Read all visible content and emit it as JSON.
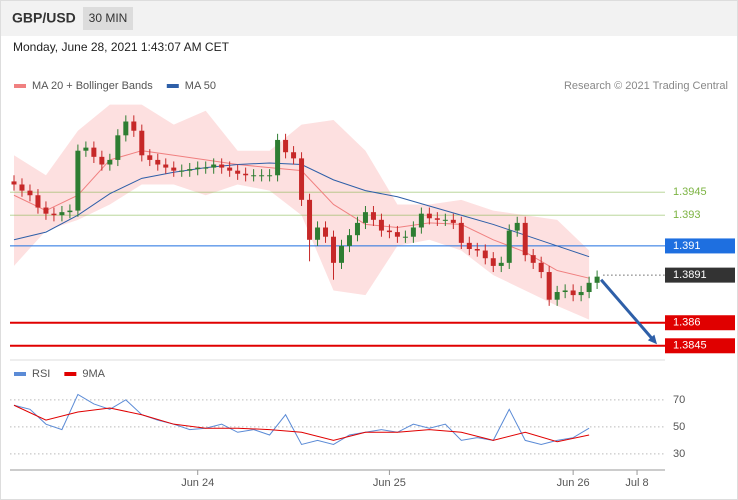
{
  "chart_data": {
    "type": "candlestick",
    "symbol": "GBP/USD",
    "timeframe": "30 MIN",
    "timestamp": "Monday, June 28, 2021 1:43:07 AM CET",
    "credit": "Research © 2021 Trading Central",
    "legend": [
      {
        "name": "MA 20 + Bollinger Bands",
        "color": "#f08080"
      },
      {
        "name": "MA 50",
        "color": "#2e5fa8"
      }
    ],
    "xlim": [
      -0.5,
      81.5
    ],
    "x_labels": [
      {
        "value": 23,
        "label": "Jun 24"
      },
      {
        "value": 47,
        "label": "Jun 25"
      },
      {
        "value": 70,
        "label": "Jun 26"
      },
      {
        "value": 78,
        "label": "Jul 8"
      }
    ],
    "ylim": [
      1.3839,
      1.4005
    ],
    "up_color": "#2e7d32",
    "down_color": "#c62828",
    "open": [
      1.3952,
      1.395,
      1.3946,
      1.3943,
      1.3935,
      1.3931,
      1.393,
      1.3932,
      1.3933,
      1.3972,
      1.3974,
      1.3968,
      1.3963,
      1.3966,
      1.3982,
      1.3991,
      1.3985,
      1.3969,
      1.3966,
      1.3963,
      1.3961,
      1.3959,
      1.3959,
      1.396,
      1.3961,
      1.3961,
      1.3963,
      1.3961,
      1.3959,
      1.3957,
      1.3956,
      1.3956,
      1.3956,
      1.3956,
      1.3979,
      1.3971,
      1.3967,
      1.394,
      1.3914,
      1.3922,
      1.3916,
      1.3899,
      1.391,
      1.3917,
      1.3925,
      1.3932,
      1.3927,
      1.392,
      1.3919,
      1.3916,
      1.3916,
      1.3922,
      1.3931,
      1.3928,
      1.3927,
      1.3927,
      1.3925,
      1.3912,
      1.3908,
      1.3907,
      1.3902,
      1.3897,
      1.3899,
      1.392,
      1.3925,
      1.3904,
      1.3899,
      1.3893,
      1.3875,
      1.388,
      1.3881,
      1.3878,
      1.388,
      1.3886
    ],
    "high": [
      1.3956,
      1.3954,
      1.395,
      1.3947,
      1.3939,
      1.3935,
      1.3936,
      1.3937,
      1.3976,
      1.3978,
      1.3978,
      1.3972,
      1.397,
      1.3986,
      1.3995,
      1.3995,
      1.3989,
      1.3973,
      1.397,
      1.3967,
      1.3965,
      1.3963,
      1.3964,
      1.3965,
      1.3965,
      1.3967,
      1.3967,
      1.3965,
      1.3963,
      1.3961,
      1.396,
      1.396,
      1.396,
      1.3983,
      1.3983,
      1.3975,
      1.3971,
      1.3944,
      1.3926,
      1.3926,
      1.392,
      1.3914,
      1.3921,
      1.3929,
      1.3936,
      1.3936,
      1.3931,
      1.3924,
      1.3923,
      1.392,
      1.3926,
      1.3935,
      1.3935,
      1.3932,
      1.3931,
      1.3931,
      1.3929,
      1.3916,
      1.3912,
      1.3911,
      1.3906,
      1.3903,
      1.3924,
      1.3929,
      1.3929,
      1.3908,
      1.3903,
      1.3897,
      1.3884,
      1.3885,
      1.3885,
      1.3884,
      1.389,
      1.3894
    ],
    "low": [
      1.3946,
      1.3942,
      1.3939,
      1.3931,
      1.3927,
      1.3926,
      1.3926,
      1.3928,
      1.3929,
      1.3968,
      1.3964,
      1.3959,
      1.3959,
      1.3962,
      1.3978,
      1.3981,
      1.3965,
      1.3962,
      1.3959,
      1.3957,
      1.3955,
      1.3955,
      1.3955,
      1.3956,
      1.3957,
      1.3957,
      1.3957,
      1.3955,
      1.3953,
      1.3952,
      1.3952,
      1.3952,
      1.3952,
      1.3952,
      1.3967,
      1.3963,
      1.3936,
      1.39,
      1.391,
      1.3912,
      1.3888,
      1.3895,
      1.3906,
      1.3913,
      1.3921,
      1.3923,
      1.3916,
      1.3915,
      1.3912,
      1.3912,
      1.3912,
      1.3918,
      1.3924,
      1.3923,
      1.3923,
      1.3921,
      1.3908,
      1.3904,
      1.3903,
      1.3898,
      1.3893,
      1.3893,
      1.3895,
      1.3916,
      1.39,
      1.3895,
      1.3889,
      1.3871,
      1.3871,
      1.3876,
      1.3874,
      1.3874,
      1.3876,
      1.3882
    ],
    "close": [
      1.395,
      1.3946,
      1.3943,
      1.3935,
      1.3931,
      1.393,
      1.3932,
      1.3933,
      1.3972,
      1.3974,
      1.3968,
      1.3963,
      1.3966,
      1.3982,
      1.3991,
      1.3985,
      1.3969,
      1.3966,
      1.3963,
      1.3961,
      1.3959,
      1.3959,
      1.396,
      1.3961,
      1.3961,
      1.3963,
      1.3961,
      1.3959,
      1.3957,
      1.3956,
      1.3956,
      1.3956,
      1.3956,
      1.3979,
      1.3971,
      1.3967,
      1.394,
      1.3914,
      1.3922,
      1.3916,
      1.3899,
      1.391,
      1.3917,
      1.3925,
      1.3932,
      1.3927,
      1.392,
      1.3919,
      1.3916,
      1.3916,
      1.3922,
      1.3931,
      1.3928,
      1.3927,
      1.3927,
      1.3925,
      1.3912,
      1.3908,
      1.3907,
      1.3902,
      1.3897,
      1.3899,
      1.392,
      1.3925,
      1.3904,
      1.3899,
      1.3893,
      1.3875,
      1.388,
      1.3881,
      1.3878,
      1.388,
      1.3886,
      1.389
    ],
    "ma_x": [
      0,
      4,
      8,
      12,
      16,
      20,
      24,
      28,
      32,
      36,
      40,
      44,
      48,
      52,
      56,
      60,
      64,
      68,
      72
    ],
    "ma20": [
      1.3943,
      1.3933,
      1.3943,
      1.3966,
      1.3972,
      1.3969,
      1.3966,
      1.3963,
      1.3961,
      1.3959,
      1.3937,
      1.3924,
      1.3922,
      1.3925,
      1.3924,
      1.3914,
      1.3906,
      1.3894,
      1.3889
    ],
    "bollinger_upper": [
      1.3969,
      1.3956,
      1.3985,
      1.4002,
      1.4002,
      1.3989,
      1.3998,
      1.3972,
      1.3972,
      1.3989,
      1.3992,
      1.3972,
      1.3937,
      1.3937,
      1.394,
      1.3933,
      1.393,
      1.3927,
      1.3907
    ],
    "bollinger_lower": [
      1.3897,
      1.392,
      1.3927,
      1.3937,
      1.395,
      1.395,
      1.3943,
      1.395,
      1.3946,
      1.393,
      1.3881,
      1.3878,
      1.391,
      1.3914,
      1.3907,
      1.3891,
      1.3881,
      1.3871,
      1.3862
    ],
    "ma50": [
      1.3914,
      1.3919,
      1.393,
      1.3944,
      1.3954,
      1.3958,
      1.3961,
      1.3963,
      1.3964,
      1.3963,
      1.3953,
      1.3946,
      1.3942,
      1.3936,
      1.393,
      1.3924,
      1.3917,
      1.391,
      1.3903
    ],
    "band_color": "#fde0e0",
    "levels": [
      {
        "value": 1.3945,
        "style": "line",
        "color": "#7cb342"
      },
      {
        "value": 1.393,
        "style": "line",
        "color": "#7cb342"
      },
      {
        "value": 1.391,
        "style": "box",
        "color": "#1e6fe0"
      },
      {
        "value": 1.3891,
        "style": "current",
        "color": "#333333"
      },
      {
        "value": 1.386,
        "style": "box",
        "color": "#e00000"
      },
      {
        "value": 1.3845,
        "style": "box",
        "color": "#e00000"
      }
    ],
    "forecast_arrow": {
      "from": [
        73.5,
        1.3888
      ],
      "to": [
        80.5,
        1.3846
      ],
      "color": "#2e5fa8"
    },
    "rsi": {
      "legend": [
        {
          "name": "RSI",
          "color": "#5b8bd6"
        },
        {
          "name": "9MA",
          "color": "#e00000"
        }
      ],
      "ylim": [
        24,
        81
      ],
      "yticks": [
        30,
        50,
        70
      ],
      "x": [
        0,
        2,
        4,
        6,
        8,
        10,
        12,
        14,
        16,
        18,
        20,
        22,
        24,
        26,
        28,
        30,
        32,
        34,
        36,
        38,
        40,
        42,
        44,
        46,
        48,
        50,
        52,
        54,
        56,
        58,
        60,
        62,
        64,
        66,
        68,
        70,
        72
      ],
      "values": [
        66,
        63,
        52,
        48,
        74,
        67,
        63,
        70,
        59,
        55,
        52,
        48,
        49,
        52,
        46,
        48,
        44,
        59,
        37,
        40,
        37,
        44,
        46,
        48,
        46,
        52,
        49,
        52,
        40,
        42,
        40,
        63,
        40,
        37,
        40,
        42,
        49
      ],
      "ma_x": [
        0,
        4,
        8,
        12,
        16,
        20,
        24,
        28,
        32,
        36,
        40,
        44,
        48,
        52,
        56,
        60,
        64,
        68,
        72
      ],
      "ma9": [
        66,
        55,
        61,
        64,
        59,
        52,
        49,
        49,
        48,
        46,
        40,
        46,
        46,
        48,
        46,
        40,
        46,
        39,
        44
      ]
    }
  }
}
